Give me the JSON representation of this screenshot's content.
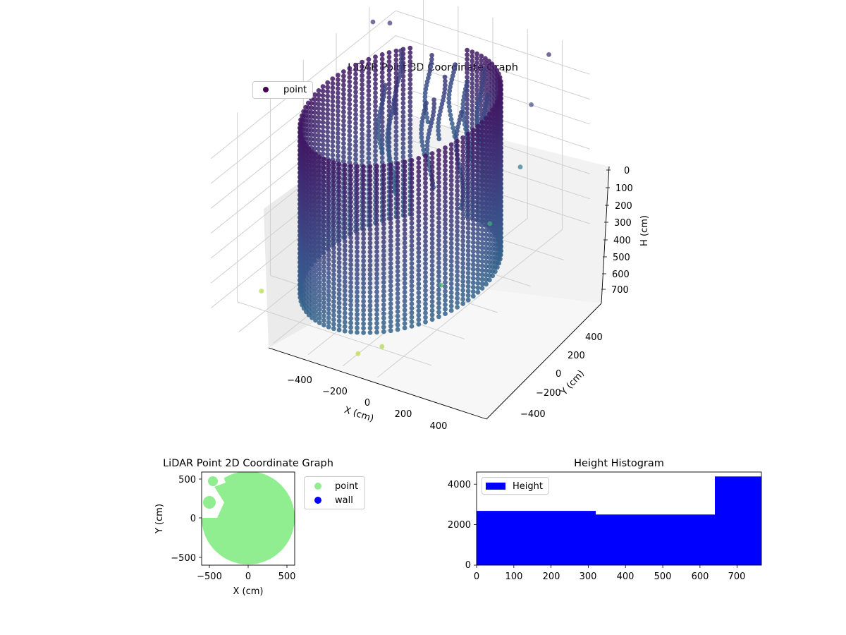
{
  "chart_data": [
    {
      "type": "scatter",
      "projection": "3d",
      "title": "LiDAR Point 3D Coordinate Graph",
      "xlabel": "X (cm)",
      "ylabel": "Y (cm)",
      "zlabel": "H (cm)",
      "xlim": [
        -560,
        560
      ],
      "ylim": [
        -560,
        560
      ],
      "zlim": [
        0,
        760
      ],
      "z_inverted": true,
      "xticks": [
        "−400",
        "−200",
        "0",
        "200",
        "400"
      ],
      "yticks": [
        "−400",
        "−200",
        "0",
        "200",
        "400"
      ],
      "zticks": [
        "0",
        "100",
        "200",
        "300",
        "400",
        "500",
        "600",
        "700"
      ],
      "colormap": "viridis",
      "legend": {
        "entries": [
          "point"
        ],
        "placement": "top-left",
        "color": "#440154"
      },
      "grid": true,
      "series": [
        {
          "name": "point",
          "description_of_values": "cylindrical wall of points",
          "ring": {
            "center": [
              0,
              0
            ],
            "radius": 420,
            "h_range": [
              60,
              740
            ]
          },
          "outliers": [
            {
              "x": -520,
              "y": 380,
              "h": 40
            },
            {
              "x": -470,
              "y": 430,
              "h": 60
            },
            {
              "x": 380,
              "y": 500,
              "h": 30
            },
            {
              "x": 450,
              "y": 320,
              "h": 120
            },
            {
              "x": 520,
              "y": 180,
              "h": 280
            },
            {
              "x": 430,
              "y": 90,
              "h": 480
            },
            {
              "x": -440,
              "y": -380,
              "h": 700
            },
            {
              "x": 250,
              "y": -520,
              "h": 720
            },
            {
              "x": 350,
              "y": -480,
              "h": 690
            },
            {
              "x": 520,
              "y": -300,
              "h": 500
            }
          ]
        }
      ]
    },
    {
      "type": "scatter",
      "title": "LiDAR Point 2D Coordinate Graph",
      "xlabel": "X (cm)",
      "ylabel": "Y (cm)",
      "xlim": [
        -600,
        600
      ],
      "ylim": [
        -600,
        600
      ],
      "xticks": [
        "−500",
        "0",
        "500"
      ],
      "yticks": [
        "500",
        "0",
        "−500"
      ],
      "legend": {
        "entries": [
          "point",
          "wall"
        ],
        "placement": "outside-right"
      },
      "series": [
        {
          "name": "point",
          "color": "#90ee90",
          "shape": "disc",
          "radius": 580,
          "notch": "top-left"
        },
        {
          "name": "wall",
          "color": "#0000ff",
          "points": []
        }
      ]
    },
    {
      "type": "bar",
      "title": "Height Histogram",
      "legend": {
        "entries": [
          "Height"
        ],
        "placement": "top-left"
      },
      "color": "#0000ff",
      "xlim": [
        0,
        765
      ],
      "ylim": [
        0,
        4600
      ],
      "xticks": [
        "0",
        "100",
        "200",
        "300",
        "400",
        "500",
        "600",
        "700"
      ],
      "yticks": [
        "0",
        "2000",
        "4000"
      ],
      "bins": [
        {
          "start": 0,
          "end": 320,
          "count": 2680
        },
        {
          "start": 320,
          "end": 640,
          "count": 2500
        },
        {
          "start": 640,
          "end": 765,
          "count": 4380
        }
      ]
    }
  ]
}
